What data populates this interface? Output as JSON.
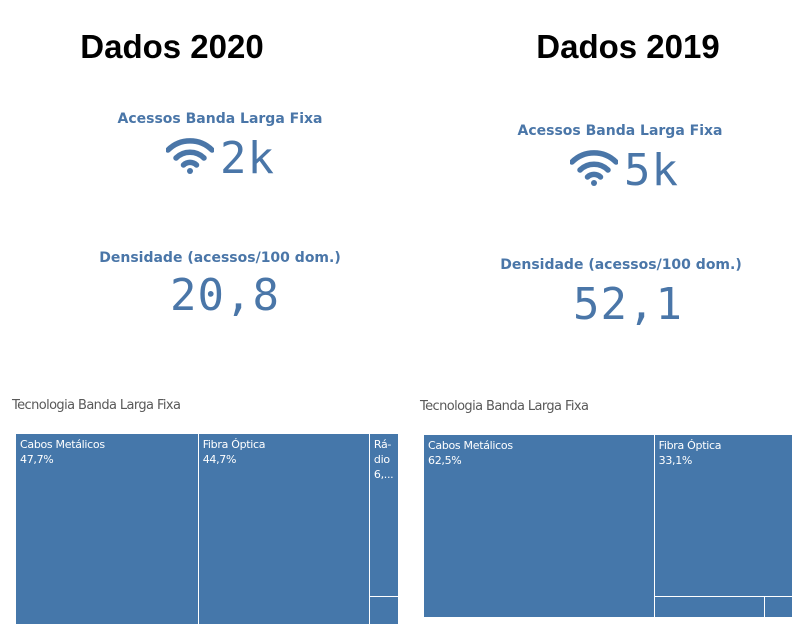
{
  "panels": [
    {
      "title": "Dados 2020",
      "kpi_access_label": "Acessos Banda Larga Fixa",
      "kpi_access_value": "2k",
      "kpi_density_label": "Densidade (acessos/100 dom.)",
      "kpi_density_value": "20,8",
      "chart_title": "Tecnologia Banda Larga Fixa"
    },
    {
      "title": "Dados 2019",
      "kpi_access_label": "Acessos Banda Larga Fixa",
      "kpi_access_value": "5k",
      "kpi_density_label": "Densidade (acessos/100 dom.)",
      "kpi_density_value": "52,1",
      "chart_title": "Tecnologia Banda Larga Fixa"
    }
  ],
  "colors": {
    "accent": "#4a76a8",
    "tile": "#4577aa",
    "tile_border": "#ffffff"
  },
  "icons": {
    "kpi": "wifi-icon"
  },
  "chart_data": [
    {
      "type": "treemap",
      "title": "Tecnologia Banda Larga Fixa",
      "tiles": [
        {
          "name": "Cabos Metálicos",
          "label": "47,7%",
          "value": 47.7
        },
        {
          "name": "Fibra Óptica",
          "label": "44,7%",
          "value": 44.7
        },
        {
          "name": "Rádio",
          "shown_name": "Rá-\ndio",
          "label": "6,...",
          "value": 6.5
        },
        {
          "name": "",
          "label": "",
          "value": 1.1
        }
      ]
    },
    {
      "type": "treemap",
      "title": "Tecnologia Banda Larga Fixa",
      "tiles": [
        {
          "name": "Cabos Metálicos",
          "label": "62,5%",
          "value": 62.5
        },
        {
          "name": "Fibra Óptica",
          "label": "33,1%",
          "value": 33.1
        },
        {
          "name": "",
          "label": "",
          "value": 3.5
        },
        {
          "name": "",
          "label": "",
          "value": 0.9
        }
      ]
    }
  ]
}
